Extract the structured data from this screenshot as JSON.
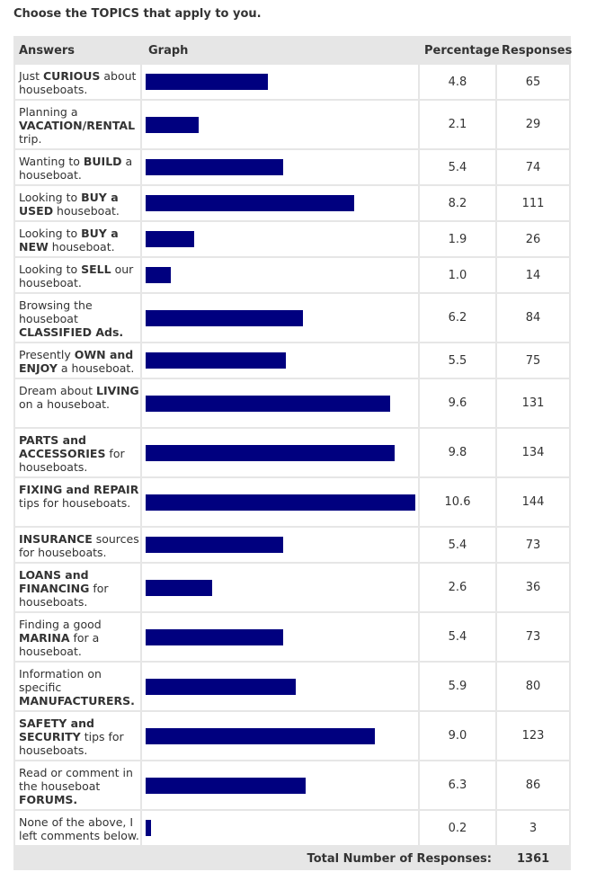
{
  "question": "Choose the TOPICS that apply to you.",
  "headers": {
    "answers": "Answers",
    "graph": "Graph",
    "percentage": "Percentage",
    "responses": "Responses"
  },
  "bar_color": "#00007f",
  "total_label": "Total Number of Responses:",
  "total_value": "1361",
  "chart_data": {
    "type": "bar",
    "orientation": "horizontal",
    "xlim": [
      0,
      10.6
    ],
    "categories": [
      "Just CURIOUS about houseboats.",
      "Planning a VACATION/RENTAL trip.",
      "Wanting to BUILD a houseboat.",
      "Looking to BUY a USED houseboat.",
      "Looking to BUY a NEW houseboat.",
      "Looking to SELL our houseboat.",
      "Browsing the houseboat CLASSIFIED Ads.",
      "Presently OWN and ENJOY a houseboat.",
      "Dream about LIVING on a houseboat.",
      "PARTS and ACCESSORIES for houseboats.",
      "FIXING and REPAIR tips for houseboats.",
      "INSURANCE sources for houseboats.",
      "LOANS and FINANCING for houseboats.",
      "Finding a good MARINA for a houseboat.",
      "Information on specific MANUFACTURERS.",
      "SAFETY and SECURITY tips for houseboats.",
      "Read or comment in the houseboat FORUMS.",
      "None of the above, I left comments below."
    ],
    "series": [
      {
        "values": [
          4.8,
          2.1,
          5.4,
          8.2,
          1.9,
          1.0,
          6.2,
          5.5,
          9.6,
          9.8,
          10.6,
          5.4,
          2.6,
          5.4,
          5.9,
          9.0,
          6.3,
          0.2
        ]
      },
      {
        "values": [
          65,
          29,
          74,
          111,
          26,
          14,
          84,
          75,
          131,
          134,
          144,
          73,
          36,
          73,
          80,
          123,
          86,
          3
        ]
      }
    ],
    "rows": [
      {
        "parts": [
          {
            "t": "Just "
          },
          {
            "t": "CURIOUS",
            "b": true
          },
          {
            "t": " about houseboats."
          }
        ],
        "pct": "4.8",
        "resp": "65"
      },
      {
        "parts": [
          {
            "t": "Planning a "
          },
          {
            "t": "VACATION/RENTAL",
            "b": true
          },
          {
            "t": " trip."
          }
        ],
        "pct": "2.1",
        "resp": "29"
      },
      {
        "parts": [
          {
            "t": "Wanting to "
          },
          {
            "t": "BUILD",
            "b": true
          },
          {
            "t": " a houseboat."
          }
        ],
        "pct": "5.4",
        "resp": "74"
      },
      {
        "parts": [
          {
            "t": "Looking to "
          },
          {
            "t": "BUY a USED",
            "b": true
          },
          {
            "t": " houseboat."
          }
        ],
        "pct": "8.2",
        "resp": "111"
      },
      {
        "parts": [
          {
            "t": "Looking to "
          },
          {
            "t": "BUY a NEW",
            "b": true
          },
          {
            "t": " houseboat."
          }
        ],
        "pct": "1.9",
        "resp": "26"
      },
      {
        "parts": [
          {
            "t": "Looking to "
          },
          {
            "t": "SELL",
            "b": true
          },
          {
            "t": " our houseboat."
          }
        ],
        "pct": "1.0",
        "resp": "14"
      },
      {
        "parts": [
          {
            "t": "Browsing the houseboat "
          },
          {
            "t": "CLASSIFIED Ads.",
            "b": true
          }
        ],
        "pct": "6.2",
        "resp": "84"
      },
      {
        "parts": [
          {
            "t": "Presently "
          },
          {
            "t": "OWN and ENJOY",
            "b": true
          },
          {
            "t": " a houseboat."
          }
        ],
        "pct": "5.5",
        "resp": "75"
      },
      {
        "parts": [
          {
            "t": "Dream about "
          },
          {
            "t": "LIVING",
            "b": true
          },
          {
            "t": " on a houseboat."
          }
        ],
        "pct": "9.6",
        "resp": "131"
      },
      {
        "parts": [
          {
            "t": "PARTS and ACCESSORIES",
            "b": true
          },
          {
            "t": " for houseboats."
          }
        ],
        "pct": "9.8",
        "resp": "134"
      },
      {
        "parts": [
          {
            "t": "FIXING and REPAIR",
            "b": true
          },
          {
            "t": " tips for houseboats."
          }
        ],
        "pct": "10.6",
        "resp": "144"
      },
      {
        "parts": [
          {
            "t": "INSURANCE",
            "b": true
          },
          {
            "t": " sources for houseboats."
          }
        ],
        "pct": "5.4",
        "resp": "73"
      },
      {
        "parts": [
          {
            "t": "LOANS and FINANCING",
            "b": true
          },
          {
            "t": " for houseboats."
          }
        ],
        "pct": "2.6",
        "resp": "36"
      },
      {
        "parts": [
          {
            "t": "Finding a good "
          },
          {
            "t": "MARINA",
            "b": true
          },
          {
            "t": " for a houseboat."
          }
        ],
        "pct": "5.4",
        "resp": "73"
      },
      {
        "parts": [
          {
            "t": "Information on specific "
          },
          {
            "t": "MANUFACTURERS.",
            "b": true
          }
        ],
        "pct": "5.9",
        "resp": "80"
      },
      {
        "parts": [
          {
            "t": "SAFETY and SECURITY",
            "b": true
          },
          {
            "t": " tips for houseboats."
          }
        ],
        "pct": "9.0",
        "resp": "123"
      },
      {
        "parts": [
          {
            "t": "Read or comment in the houseboat "
          },
          {
            "t": "FORUMS.",
            "b": true
          }
        ],
        "pct": "6.3",
        "resp": "86"
      },
      {
        "parts": [
          {
            "t": "None of the above, I left comments below."
          }
        ],
        "pct": "0.2",
        "resp": "3"
      }
    ]
  }
}
